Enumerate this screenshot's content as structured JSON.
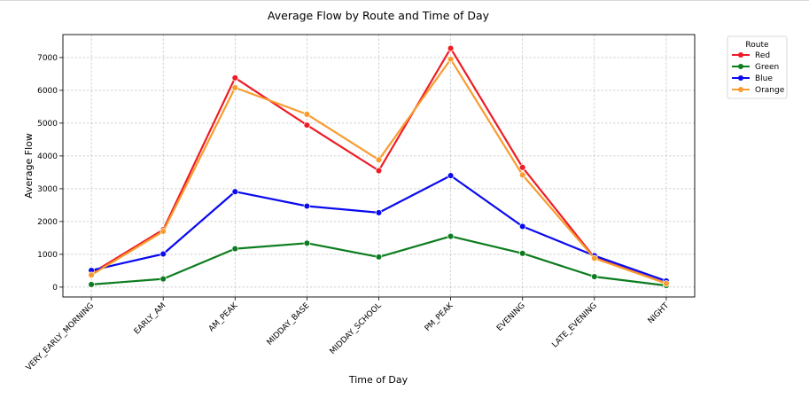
{
  "chart_data": {
    "type": "line",
    "title": "Average Flow by Route and Time of Day",
    "xlabel": "Time of Day",
    "ylabel": "Average Flow",
    "categories": [
      "VERY_EARLY_MORNING",
      "EARLY_AM",
      "AM_PEAK",
      "MIDDAY_BASE",
      "MIDDAY_SCHOOL",
      "PM_PEAK",
      "EVENING",
      "LATE_EVENING",
      "NIGHT"
    ],
    "ylim": [
      -300,
      7700
    ],
    "yticks": [
      0,
      1000,
      2000,
      3000,
      4000,
      5000,
      6000,
      7000
    ],
    "grid": true,
    "legend": {
      "title": "Route",
      "placement": "outside-right"
    },
    "series": [
      {
        "name": "Red",
        "color": "#ee1c25",
        "values": [
          420,
          1750,
          6380,
          4940,
          3550,
          7280,
          3650,
          900,
          120
        ]
      },
      {
        "name": "Green",
        "color": "#0d7c1f",
        "values": [
          80,
          250,
          1170,
          1340,
          920,
          1550,
          1030,
          320,
          50
        ]
      },
      {
        "name": "Blue",
        "color": "#0a0af0",
        "values": [
          510,
          1010,
          2910,
          2470,
          2270,
          3400,
          1850,
          960,
          190
        ]
      },
      {
        "name": "Orange",
        "color": "#f89c2f",
        "values": [
          370,
          1700,
          6080,
          5270,
          3880,
          6950,
          3420,
          880,
          110
        ]
      }
    ]
  }
}
